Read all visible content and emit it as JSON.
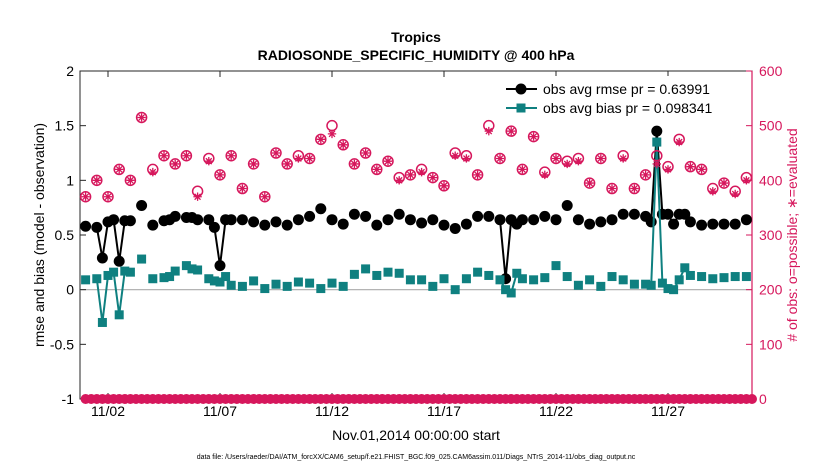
{
  "colors": {
    "rmse": "#000000",
    "bias": "#0f8080",
    "obs": "#d6175c",
    "zero_line": "#a9a9a9",
    "axis": "#262626",
    "background": "#ffffff"
  },
  "chart_data": {
    "type": "line",
    "title": "Tropics",
    "subtitle": "RADIOSONDE_SPECIFIC_HUMIDITY @ 400 hPa",
    "xlabel": "Nov.01,2014 00:00:00 start",
    "ylabel_left": "rmse and bias (model - observation)",
    "ylabel_right": "# of obs: o=possible; ∗=evaluated",
    "footnote": "data file: /Users/raeder/DAI/ATM_forcXX/CAM6_setup/f.e21.FHIST_BGC.f09_025.CAM6assim.011/Diags_NTrS_2014-11/obs_diag_output.nc",
    "ylim_left": [
      -1,
      2
    ],
    "ylim_right": [
      0,
      600
    ],
    "xlim_days": [
      0.75,
      30.75
    ],
    "x_ticks": [
      {
        "day": 2,
        "label": "11/02"
      },
      {
        "day": 7,
        "label": "11/07"
      },
      {
        "day": 12,
        "label": "11/12"
      },
      {
        "day": 17,
        "label": "11/17"
      },
      {
        "day": 22,
        "label": "11/22"
      },
      {
        "day": 27,
        "label": "11/27"
      }
    ],
    "y_ticks_left": [
      "-1",
      "-0.5",
      "0",
      "0.5",
      "1",
      "1.5",
      "2"
    ],
    "y_ticks_left_values": [
      -1,
      -0.5,
      0,
      0.5,
      1,
      1.5,
      2
    ],
    "y_ticks_right": [
      "0",
      "100",
      "200",
      "300",
      "400",
      "500",
      "600"
    ],
    "y_ticks_right_values": [
      0,
      100,
      200,
      300,
      400,
      500,
      600
    ],
    "legend": {
      "position": "top-right",
      "entries": [
        {
          "series": "rmse",
          "label": "obs avg rmse pr = 0.63991"
        },
        {
          "series": "bias",
          "label": "obs avg bias pr = 0.098341"
        }
      ]
    },
    "x_days": [
      1.0,
      1.25,
      1.5,
      1.75,
      2.0,
      2.25,
      2.5,
      2.75,
      3.0,
      3.25,
      3.5,
      3.75,
      4.0,
      4.25,
      4.5,
      4.75,
      5.0,
      5.25,
      5.5,
      5.75,
      6.0,
      6.25,
      6.5,
      6.75,
      7.0,
      7.25,
      7.5,
      7.75,
      8.0,
      8.25,
      8.5,
      8.75,
      9.0,
      9.25,
      9.5,
      9.75,
      10.0,
      10.25,
      10.5,
      10.75,
      11.0,
      11.25,
      11.5,
      11.75,
      12.0,
      12.25,
      12.5,
      12.75,
      13.0,
      13.25,
      13.5,
      13.75,
      14.0,
      14.25,
      14.5,
      14.75,
      15.0,
      15.25,
      15.5,
      15.75,
      16.0,
      16.25,
      16.5,
      16.75,
      17.0,
      17.25,
      17.5,
      17.75,
      18.0,
      18.25,
      18.5,
      18.75,
      19.0,
      19.25,
      19.5,
      19.75,
      20.0,
      20.25,
      20.5,
      20.75,
      21.0,
      21.25,
      21.5,
      21.75,
      22.0,
      22.25,
      22.5,
      22.75,
      23.0,
      23.25,
      23.5,
      23.75,
      24.0,
      24.25,
      24.5,
      24.75,
      25.0,
      25.25,
      25.5,
      25.75,
      26.0,
      26.25,
      26.5,
      26.75,
      27.0,
      27.25,
      27.5,
      27.75,
      28.0,
      28.25,
      28.5,
      28.75,
      29.0,
      29.25,
      29.5,
      29.75,
      30.0,
      30.25,
      30.5,
      30.75
    ],
    "series": [
      {
        "name": "rmse",
        "marker": "circle",
        "x_days": [
          1.0,
          1.5,
          1.75,
          2.0,
          2.25,
          2.5,
          2.75,
          3.0,
          3.5,
          4.0,
          4.5,
          4.75,
          5.0,
          5.5,
          5.75,
          6.0,
          6.5,
          6.75,
          7.0,
          7.25,
          7.5,
          8.0,
          8.5,
          9.0,
          9.5,
          10.0,
          10.5,
          11.0,
          11.5,
          12.0,
          12.5,
          13.0,
          13.5,
          14.0,
          14.5,
          15.0,
          15.5,
          16.0,
          16.5,
          17.0,
          17.5,
          18.0,
          18.5,
          19.0,
          19.5,
          19.75,
          20.0,
          20.25,
          20.5,
          21.0,
          21.5,
          22.0,
          22.5,
          23.0,
          23.5,
          24.0,
          24.5,
          25.0,
          25.5,
          26.0,
          26.25,
          26.5,
          26.75,
          27.0,
          27.25,
          27.5,
          27.75,
          28.0,
          28.5,
          29.0,
          29.5,
          30.0,
          30.5
        ],
        "values": [
          0.58,
          0.57,
          0.29,
          0.62,
          0.64,
          0.26,
          0.63,
          0.63,
          0.77,
          0.59,
          0.63,
          0.64,
          0.67,
          0.66,
          0.66,
          0.64,
          0.64,
          0.57,
          0.22,
          0.64,
          0.64,
          0.64,
          0.62,
          0.59,
          0.62,
          0.59,
          0.64,
          0.67,
          0.74,
          0.64,
          0.6,
          0.69,
          0.67,
          0.59,
          0.64,
          0.69,
          0.64,
          0.61,
          0.64,
          0.59,
          0.56,
          0.6,
          0.67,
          0.67,
          0.64,
          0.1,
          0.64,
          0.6,
          0.64,
          0.64,
          0.67,
          0.64,
          0.77,
          0.64,
          0.6,
          0.62,
          0.64,
          0.69,
          0.69,
          0.67,
          0.62,
          1.45,
          0.69,
          0.69,
          0.6,
          0.69,
          0.69,
          0.62,
          0.59,
          0.6,
          0.6,
          0.6,
          0.64
        ]
      },
      {
        "name": "bias",
        "marker": "square",
        "x_days": [
          1.0,
          1.5,
          1.75,
          2.0,
          2.25,
          2.5,
          2.75,
          3.0,
          3.5,
          4.0,
          4.5,
          4.75,
          5.0,
          5.5,
          5.75,
          6.0,
          6.5,
          6.75,
          7.0,
          7.25,
          7.5,
          8.0,
          8.5,
          9.0,
          9.5,
          10.0,
          10.5,
          11.0,
          11.5,
          12.0,
          12.5,
          13.0,
          13.5,
          14.0,
          14.5,
          15.0,
          15.5,
          16.0,
          16.5,
          17.0,
          17.5,
          18.0,
          18.5,
          19.0,
          19.5,
          19.75,
          20.0,
          20.25,
          20.5,
          21.0,
          21.5,
          22.0,
          22.5,
          23.0,
          23.5,
          24.0,
          24.5,
          25.0,
          25.5,
          26.0,
          26.25,
          26.5,
          26.75,
          27.0,
          27.25,
          27.5,
          27.75,
          28.0,
          28.5,
          29.0,
          29.5,
          30.0,
          30.5
        ],
        "values": [
          0.09,
          0.1,
          -0.3,
          0.13,
          0.16,
          -0.23,
          0.17,
          0.16,
          0.28,
          0.1,
          0.11,
          0.12,
          0.17,
          0.22,
          0.19,
          0.18,
          0.1,
          0.08,
          0.07,
          0.12,
          0.04,
          0.03,
          0.08,
          0.01,
          0.05,
          0.03,
          0.07,
          0.06,
          0.01,
          0.06,
          0.03,
          0.14,
          0.19,
          0.13,
          0.16,
          0.15,
          0.09,
          0.09,
          0.03,
          0.1,
          0.0,
          0.1,
          0.16,
          0.13,
          0.09,
          0.0,
          -0.03,
          0.15,
          0.1,
          0.09,
          0.11,
          0.22,
          0.12,
          0.04,
          0.09,
          0.03,
          0.12,
          0.09,
          0.05,
          0.05,
          0.04,
          1.35,
          0.06,
          0.01,
          0.0,
          0.09,
          0.2,
          0.13,
          0.12,
          0.1,
          0.11,
          0.12,
          0.12
        ]
      },
      {
        "name": "obs possible",
        "marker": "circle-open",
        "axis": "right",
        "x_days": [
          1.0,
          1.5,
          2.0,
          2.5,
          3.0,
          3.5,
          4.0,
          4.5,
          5.0,
          5.5,
          6.0,
          6.5,
          7.0,
          7.5,
          8.0,
          8.5,
          9.0,
          9.5,
          10.0,
          10.5,
          11.0,
          11.5,
          12.0,
          12.5,
          13.0,
          13.5,
          14.0,
          14.5,
          15.0,
          15.5,
          16.0,
          16.5,
          17.0,
          17.5,
          18.0,
          18.5,
          19.0,
          19.5,
          20.0,
          20.5,
          21.0,
          21.5,
          22.0,
          22.5,
          23.0,
          23.5,
          24.0,
          24.5,
          25.0,
          25.5,
          26.0,
          26.5,
          27.0,
          27.5,
          28.0,
          28.5,
          29.0,
          29.5,
          30.0,
          30.5
        ],
        "values": [
          370,
          400,
          370,
          420,
          400,
          515,
          420,
          445,
          430,
          445,
          380,
          440,
          410,
          445,
          385,
          430,
          370,
          450,
          430,
          445,
          440,
          475,
          500,
          465,
          430,
          450,
          420,
          435,
          405,
          410,
          420,
          405,
          390,
          450,
          445,
          410,
          500,
          440,
          490,
          420,
          480,
          415,
          440,
          435,
          440,
          395,
          440,
          385,
          445,
          385,
          410,
          445,
          425,
          475,
          425,
          420,
          385,
          395,
          380,
          405
        ]
      },
      {
        "name": "obs evaluated",
        "marker": "asterisk",
        "axis": "right",
        "x_days": [
          1.0,
          1.5,
          2.0,
          2.5,
          3.0,
          3.5,
          4.0,
          4.5,
          5.0,
          5.5,
          6.0,
          6.5,
          7.0,
          7.5,
          8.0,
          8.5,
          9.0,
          9.5,
          10.0,
          10.5,
          11.0,
          11.5,
          12.0,
          12.5,
          13.0,
          13.5,
          14.0,
          14.5,
          15.0,
          15.5,
          16.0,
          16.5,
          17.0,
          17.5,
          18.0,
          18.5,
          19.0,
          19.5,
          20.0,
          20.5,
          21.0,
          21.5,
          22.0,
          22.5,
          23.0,
          23.5,
          24.0,
          24.5,
          25.0,
          25.5,
          26.0,
          26.5,
          27.0,
          27.5,
          28.0,
          28.5,
          29.0,
          29.5,
          30.0,
          30.5
        ],
        "values": [
          370,
          400,
          370,
          420,
          400,
          515,
          415,
          445,
          430,
          445,
          370,
          435,
          410,
          445,
          385,
          430,
          370,
          450,
          430,
          440,
          440,
          475,
          485,
          465,
          430,
          450,
          420,
          435,
          400,
          410,
          415,
          405,
          390,
          445,
          440,
          410,
          490,
          440,
          490,
          420,
          480,
          410,
          440,
          430,
          435,
          395,
          440,
          385,
          440,
          385,
          410,
          430,
          420,
          470,
          425,
          420,
          380,
          395,
          375,
          400
        ]
      },
      {
        "name": "obs zero line",
        "marker": "circle-filled",
        "axis": "right",
        "x_days_from": 1.0,
        "x_days_to": 30.75,
        "x_step": 0.25,
        "values_all": 0
      }
    ]
  }
}
